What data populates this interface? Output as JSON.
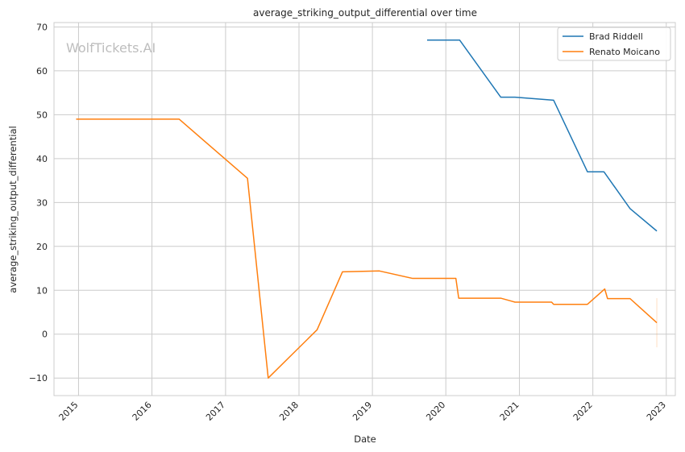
{
  "chart_data": {
    "type": "line",
    "title": "average_striking_output_differential over time",
    "xlabel": "Date",
    "ylabel": "average_striking_output_differential",
    "watermark": "WolfTickets.AI",
    "x_ticks": [
      "2015",
      "2016",
      "2017",
      "2018",
      "2019",
      "2020",
      "2021",
      "2022",
      "2023"
    ],
    "y_ticks": [
      -10,
      0,
      10,
      20,
      30,
      40,
      50,
      60,
      70
    ],
    "xlim": [
      "2014-09-01",
      "2023-02-15"
    ],
    "ylim": [
      -14,
      71
    ],
    "grid": true,
    "legend_position": "top-right",
    "series": [
      {
        "name": "Brad Riddell",
        "color": "#1f77b4",
        "points": [
          [
            "2019-09-30",
            67.0
          ],
          [
            "2020-03-10",
            67.0
          ],
          [
            "2020-09-30",
            54.0
          ],
          [
            "2020-12-10",
            54.0
          ],
          [
            "2021-06-20",
            53.3
          ],
          [
            "2021-12-05",
            37.0
          ],
          [
            "2022-02-25",
            37.0
          ],
          [
            "2022-07-05",
            28.6
          ],
          [
            "2022-11-15",
            23.5
          ]
        ]
      },
      {
        "name": "Renato Moicano",
        "color": "#ff7f0e",
        "points": [
          [
            "2014-12-20",
            49.0
          ],
          [
            "2016-05-15",
            49.0
          ],
          [
            "2017-04-20",
            35.5
          ],
          [
            "2017-08-01",
            -10.0
          ],
          [
            "2018-04-01",
            1.0
          ],
          [
            "2018-08-05",
            14.2
          ],
          [
            "2019-02-05",
            14.4
          ],
          [
            "2019-07-20",
            12.7
          ],
          [
            "2020-02-20",
            12.7
          ],
          [
            "2020-03-05",
            8.2
          ],
          [
            "2020-09-30",
            8.2
          ],
          [
            "2020-12-10",
            7.3
          ],
          [
            "2021-06-10",
            7.3
          ],
          [
            "2021-06-20",
            6.8
          ],
          [
            "2021-12-05",
            6.8
          ],
          [
            "2022-03-01",
            10.3
          ],
          [
            "2022-03-15",
            8.1
          ],
          [
            "2022-07-05",
            8.1
          ],
          [
            "2022-11-15",
            2.6
          ]
        ],
        "error_band": {
          "x": "2022-11-15",
          "low": -3.0,
          "high": 8.2
        }
      }
    ]
  }
}
